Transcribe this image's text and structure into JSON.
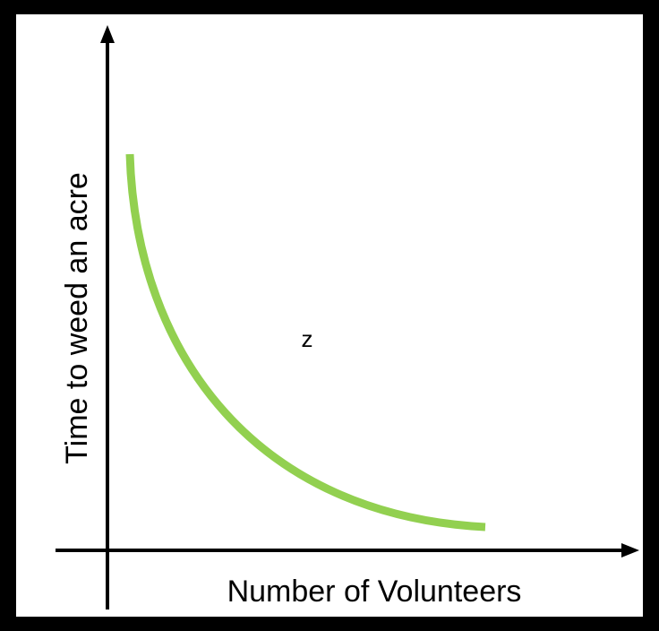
{
  "diagram": {
    "y_axis_label": "Time to weed an acre",
    "x_axis_label": "Number of Volunteers",
    "annotation": "z"
  }
}
